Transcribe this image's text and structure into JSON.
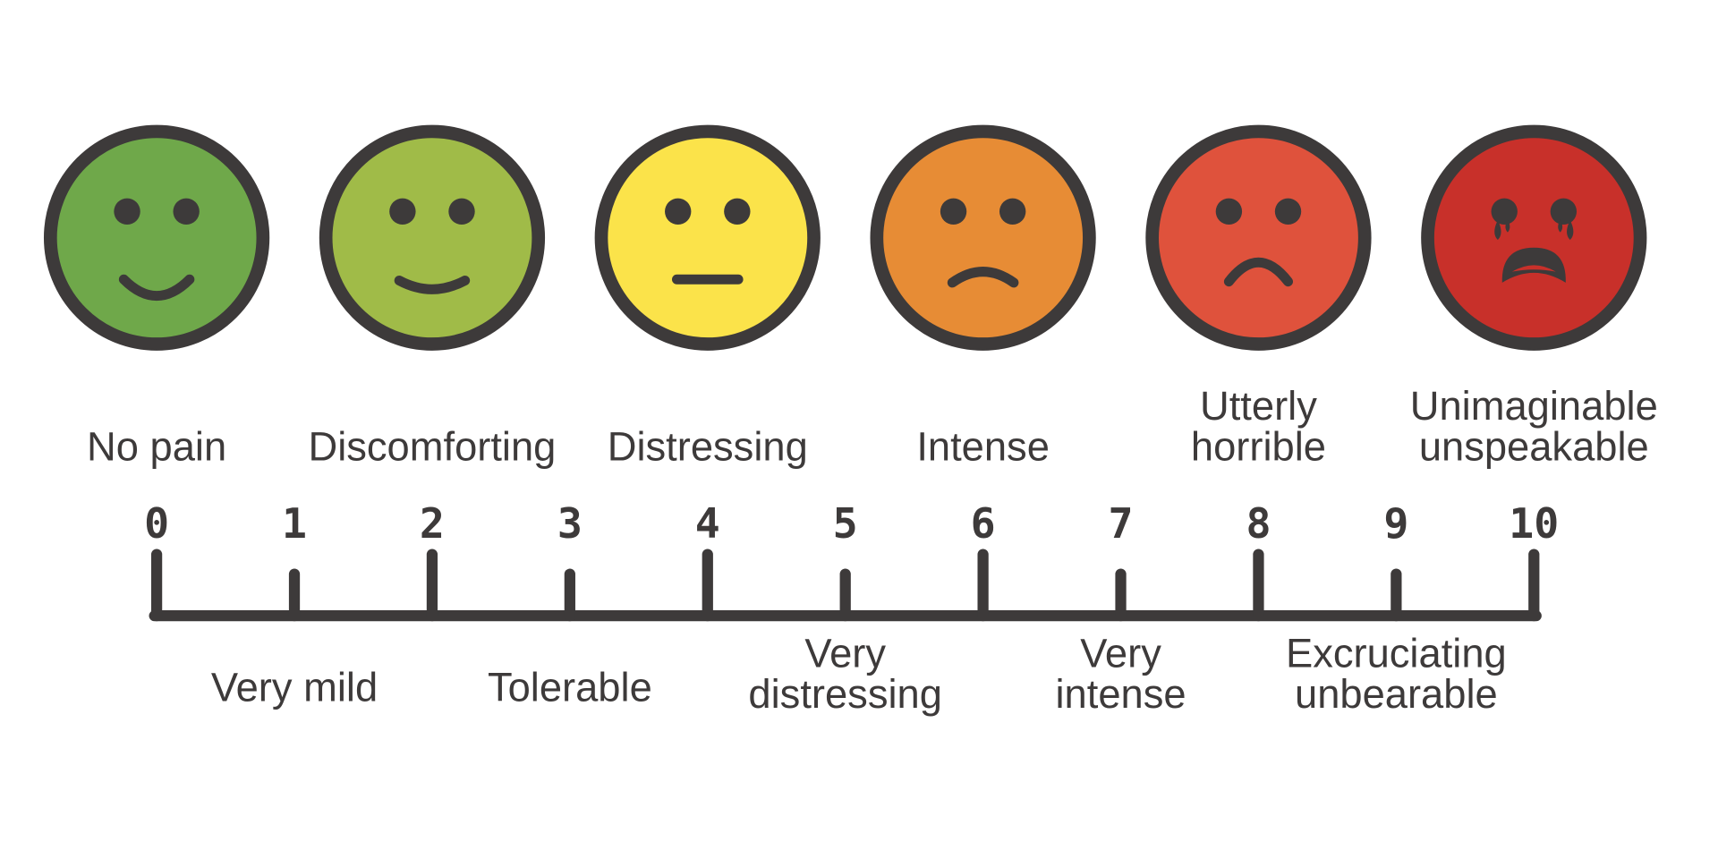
{
  "outline_color": "#3d3a3a",
  "faces": [
    {
      "label": [
        "No pain"
      ],
      "color": "#6fa84a",
      "mood": "happy"
    },
    {
      "label": [
        "Discomforting"
      ],
      "color": "#a0bb48",
      "mood": "slight-smile"
    },
    {
      "label": [
        "Distressing"
      ],
      "color": "#fbe34a",
      "mood": "neutral"
    },
    {
      "label": [
        "Intense"
      ],
      "color": "#e78c35",
      "mood": "slight-frown"
    },
    {
      "label": [
        "Utterly",
        "horrible"
      ],
      "color": "#df523c",
      "mood": "frown"
    },
    {
      "label": [
        "Unimaginable",
        "unspeakable"
      ],
      "color": "#c8302a",
      "mood": "crying"
    }
  ],
  "scale": {
    "numbers": [
      "0",
      "1",
      "2",
      "3",
      "4",
      "5",
      "6",
      "7",
      "8",
      "9",
      "10"
    ],
    "odd_labels": [
      [
        "Very mild"
      ],
      [
        "Tolerable"
      ],
      [
        "Very",
        "distressing"
      ],
      [
        "Very",
        "intense"
      ],
      [
        "Excruciating",
        "unbearable"
      ]
    ]
  }
}
